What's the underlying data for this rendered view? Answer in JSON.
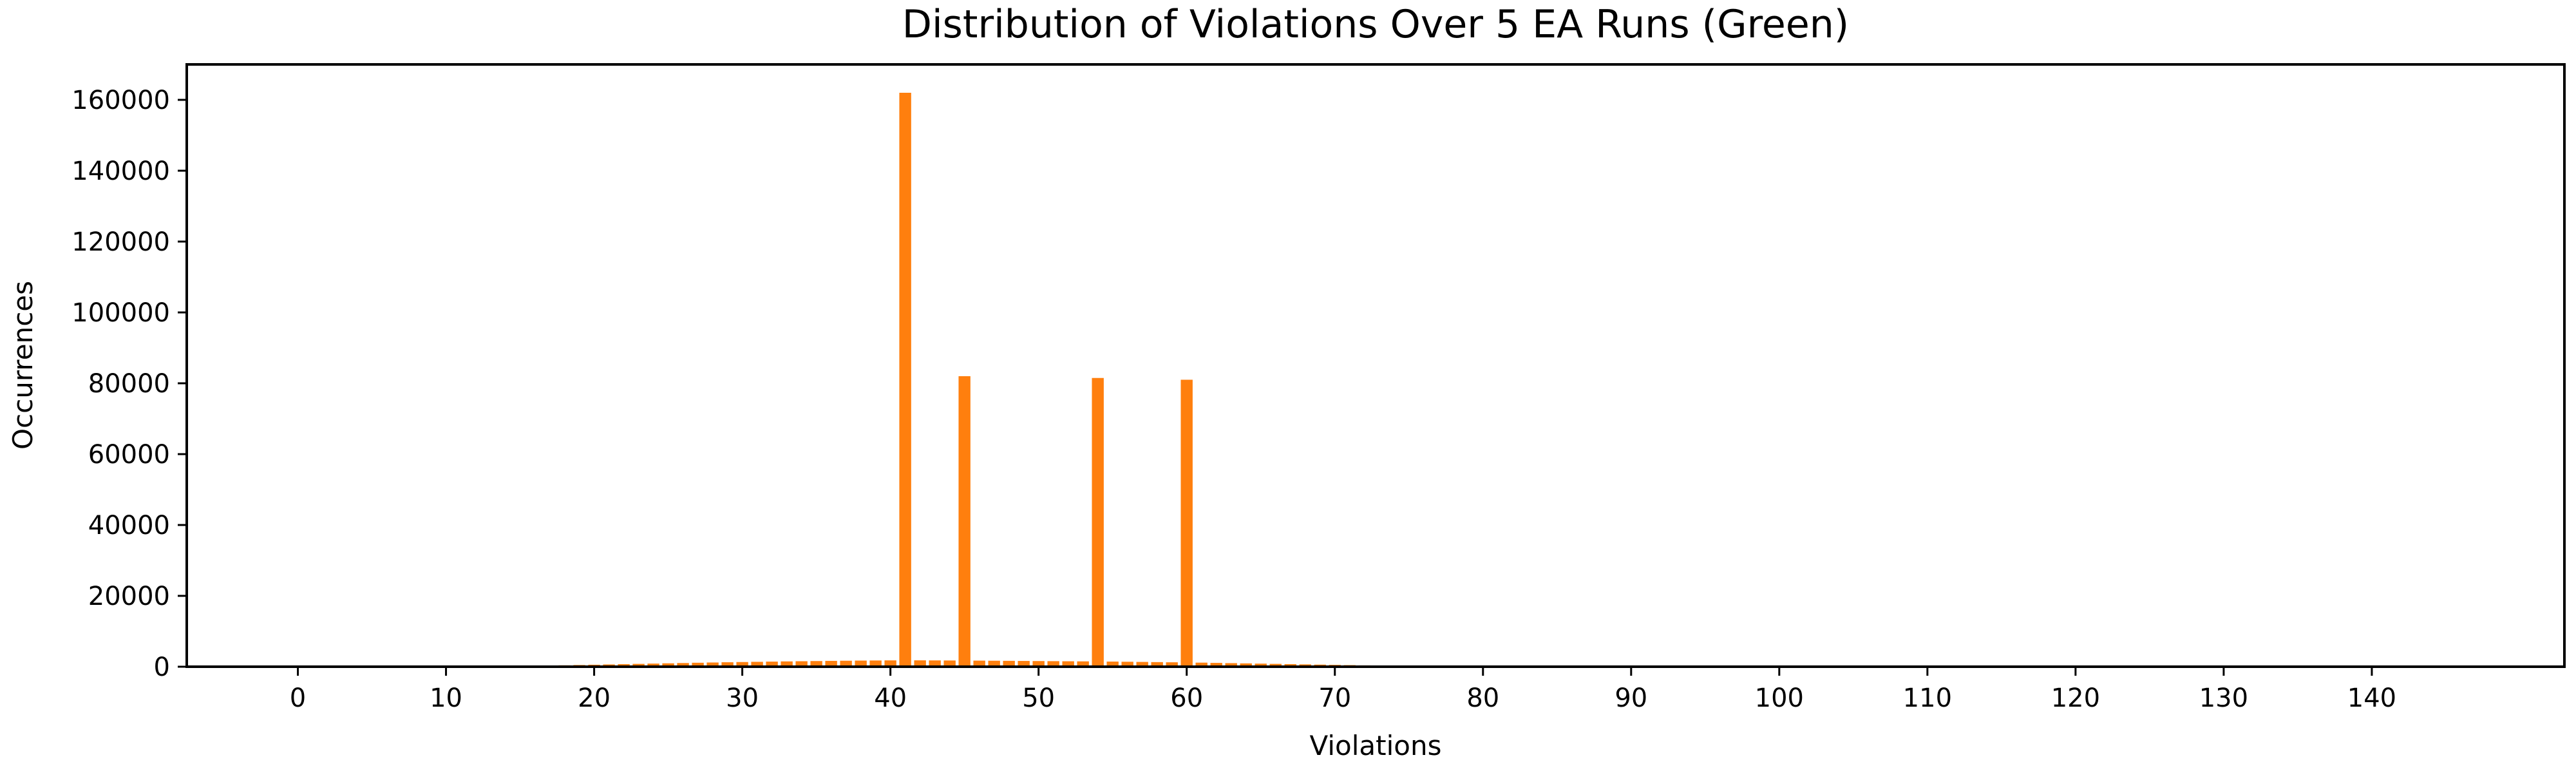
{
  "chart_data": {
    "type": "bar",
    "title": "Distribution of Violations Over 5 EA Runs (Green)",
    "xlabel": "Violations",
    "ylabel": "Occurrences",
    "xlim": [
      -7.5,
      153
    ],
    "ylim": [
      0,
      170000
    ],
    "xticks": [
      0,
      10,
      20,
      30,
      40,
      50,
      60,
      70,
      80,
      90,
      100,
      110,
      120,
      130,
      140
    ],
    "yticks": [
      0,
      20000,
      40000,
      60000,
      80000,
      100000,
      120000,
      140000,
      160000
    ],
    "bar_color": "#ff7f0e",
    "grid": false,
    "legend": "none",
    "x": [
      12,
      13,
      14,
      15,
      16,
      17,
      18,
      19,
      20,
      21,
      22,
      23,
      24,
      25,
      26,
      27,
      28,
      29,
      30,
      31,
      32,
      33,
      34,
      35,
      36,
      37,
      38,
      39,
      40,
      41,
      42,
      43,
      44,
      45,
      46,
      47,
      48,
      49,
      50,
      51,
      52,
      53,
      54,
      55,
      56,
      57,
      58,
      59,
      60,
      61,
      62,
      63,
      64,
      65,
      66,
      67,
      68,
      69,
      70,
      71,
      72,
      73,
      74,
      75,
      76,
      77,
      78,
      79,
      80
    ],
    "values": [
      50,
      80,
      120,
      180,
      250,
      320,
      400,
      480,
      560,
      640,
      720,
      800,
      880,
      960,
      1040,
      1120,
      1190,
      1260,
      1320,
      1380,
      1440,
      1500,
      1550,
      1600,
      1650,
      1690,
      1730,
      1760,
      1790,
      162000,
      1800,
      1780,
      1760,
      82000,
      1720,
      1690,
      1660,
      1630,
      1600,
      1570,
      1540,
      1510,
      81500,
      1450,
      1400,
      1350,
      1300,
      1250,
      81000,
      1150,
      1080,
      1010,
      940,
      870,
      800,
      730,
      660,
      590,
      520,
      450,
      380,
      310,
      250,
      190,
      140,
      100,
      70,
      40,
      20
    ]
  }
}
